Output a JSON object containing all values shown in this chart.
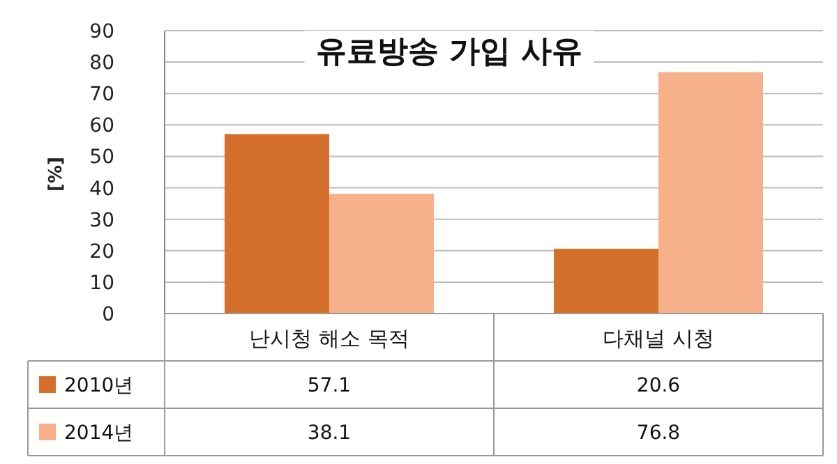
{
  "chart_data": {
    "type": "bar",
    "title": "유료방송 가입 사유",
    "ylabel": "[%]",
    "categories": [
      "난시청 해소 목적",
      "다채널 시청"
    ],
    "series": [
      {
        "name": "2010년",
        "color": "#d4702b",
        "values": [
          57.1,
          20.6
        ]
      },
      {
        "name": "2014년",
        "color": "#f6b08a",
        "values": [
          38.1,
          76.8
        ]
      }
    ],
    "ylim": [
      0,
      90
    ],
    "yticks": [
      0,
      10,
      20,
      30,
      40,
      50,
      60,
      70,
      80,
      90
    ],
    "grid": "y",
    "legend": "bottom",
    "data_labels": true
  }
}
